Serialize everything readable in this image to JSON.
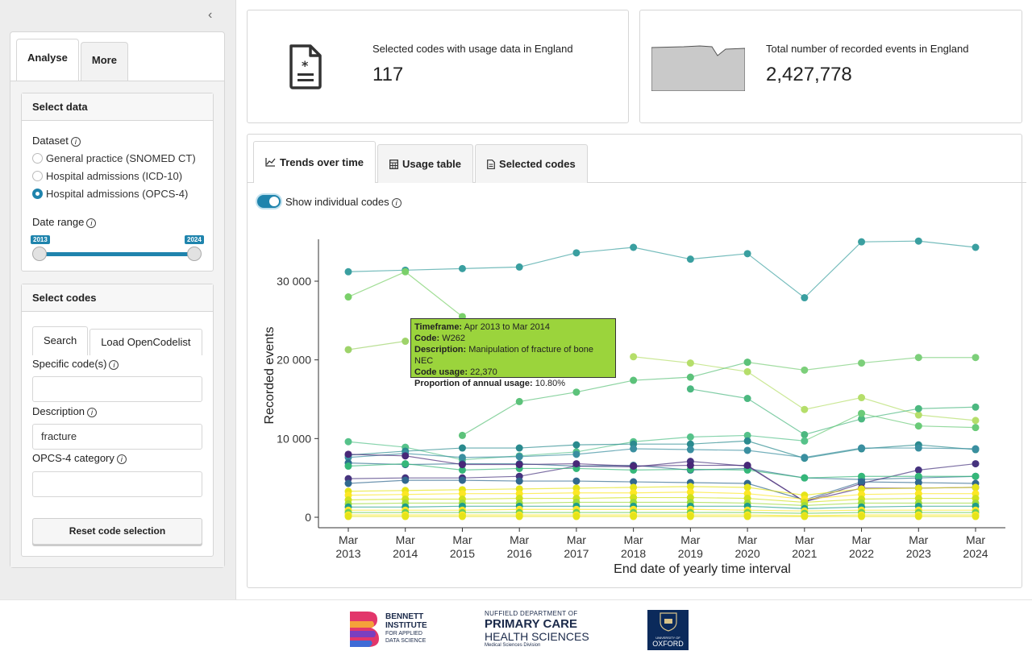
{
  "sidebar": {
    "tabs": [
      "Analyse",
      "More"
    ],
    "select_data": {
      "header": "Select data",
      "dataset_label": "Dataset",
      "datasets": [
        "General practice (SNOMED CT)",
        "Hospital admissions (ICD-10)",
        "Hospital admissions (OPCS-4)"
      ],
      "selected_dataset": 2,
      "date_range_label": "Date range",
      "date_range": [
        2013,
        2024
      ],
      "date_min_label": "2013",
      "date_max_label": "2024"
    },
    "select_codes": {
      "header": "Select codes",
      "tabs": [
        "Search",
        "Load OpenCodelist"
      ],
      "specific_codes_label": "Specific code(s)",
      "specific_codes_value": "",
      "description_label": "Description",
      "description_value": "fracture",
      "category_label": "OPCS-4 category",
      "category_value": "",
      "reset_button": "Reset code selection"
    }
  },
  "kpis": {
    "selected_codes": {
      "title": "Selected codes with usage data in England",
      "value": "117"
    },
    "total_events": {
      "title": "Total number of recorded events in England",
      "value": "2,427,778"
    }
  },
  "main_tabs": [
    "Trends over time",
    "Usage table",
    "Selected codes"
  ],
  "toggle_label": "Show individual codes",
  "tooltip": {
    "timeframe_label": "Timeframe:",
    "timeframe": "Apr 2013 to Mar 2014",
    "code_label": "Code:",
    "code": "W262",
    "description_label": "Description:",
    "description": "Manipulation of fracture of bone NEC",
    "usage_label": "Code usage:",
    "usage": "22,370",
    "proportion_label": "Proportion of annual usage:",
    "proportion": "10.80%"
  },
  "chart_data": {
    "type": "line",
    "xlabel": "End date of yearly time interval",
    "ylabel": "Recorded events",
    "x": [
      "Mar\n2013",
      "Mar\n2014",
      "Mar\n2015",
      "Mar\n2016",
      "Mar\n2017",
      "Mar\n2018",
      "Mar\n2019",
      "Mar\n2020",
      "Mar\n2021",
      "Mar\n2022",
      "Mar\n2023",
      "Mar\n2024"
    ],
    "y_ticks": [
      "0",
      "10 000",
      "20 000",
      "30 000"
    ],
    "ylim": [
      0,
      37000
    ],
    "series": [
      {
        "color": "#3a9fa0",
        "values": [
          31200,
          31400,
          31600,
          31800,
          33600,
          34300,
          32800,
          33500,
          27900,
          35000,
          35100,
          34300
        ]
      },
      {
        "color": "#7ad06a",
        "values": [
          28000,
          31200,
          25500,
          null,
          null,
          null,
          null,
          null,
          null,
          null,
          null,
          null
        ]
      },
      {
        "color": "#9ed36a",
        "values": [
          21300,
          22370,
          null,
          null,
          null,
          null,
          null,
          null,
          null,
          null,
          null,
          null
        ]
      },
      {
        "color": "#b5de6a",
        "values": [
          null,
          null,
          null,
          null,
          null,
          20400,
          19600,
          18500,
          13700,
          15200,
          13000,
          12300
        ]
      },
      {
        "color": "#7ccf7a",
        "values": [
          null,
          null,
          null,
          null,
          null,
          null,
          null,
          19700,
          18700,
          19600,
          20300,
          20300
        ]
      },
      {
        "color": "#5cc27a",
        "values": [
          null,
          null,
          10400,
          14700,
          15900,
          17400,
          17800,
          19700,
          null,
          null,
          null,
          null
        ]
      },
      {
        "color": "#4cb880",
        "values": [
          null,
          null,
          null,
          null,
          null,
          null,
          16300,
          15100,
          10500,
          12500,
          13800,
          14000
        ]
      },
      {
        "color": "#6acb78",
        "values": [
          null,
          null,
          null,
          null,
          null,
          null,
          null,
          null,
          9700,
          13200,
          11600,
          11400
        ]
      },
      {
        "color": "#56c28a",
        "values": [
          9600,
          8900,
          7300,
          7800,
          8300,
          9600,
          10200,
          10400,
          9700,
          null,
          null,
          null
        ]
      },
      {
        "color": "#2a8a8e",
        "values": [
          7900,
          8400,
          8800,
          8800,
          9200,
          9300,
          9300,
          9700,
          7500,
          8700,
          9200,
          8600
        ]
      },
      {
        "color": "#3a8fa0",
        "values": [
          7600,
          8100,
          7600,
          7700,
          8000,
          8700,
          8600,
          8500,
          7600,
          8800,
          8800,
          8700
        ]
      },
      {
        "color": "#2d6f8e",
        "values": [
          6900,
          6700,
          6800,
          6800,
          6500,
          6600,
          6000,
          6200,
          5000,
          4800,
          5000,
          5200
        ]
      },
      {
        "color": "#46337e",
        "values": [
          4900,
          5000,
          5000,
          5200,
          6500,
          6400,
          7100,
          6500,
          2000,
          4300,
          6000,
          6800
        ]
      },
      {
        "color": "#35b779",
        "values": [
          6500,
          6800,
          6000,
          6200,
          6200,
          6000,
          6100,
          6000,
          5000,
          5200,
          5200,
          5200
        ]
      },
      {
        "color": "#31688e",
        "values": [
          4300,
          4700,
          4700,
          4600,
          4600,
          4500,
          4400,
          4300,
          2200,
          4500,
          4400,
          4300
        ]
      },
      {
        "color": "#482878",
        "values": [
          8000,
          7800,
          6700,
          6700,
          6800,
          6500,
          6600,
          6600,
          2000,
          3700,
          3700,
          3800
        ]
      },
      {
        "color": "#e5e419",
        "values": [
          3300,
          3400,
          3500,
          3600,
          3700,
          3800,
          3900,
          3800,
          2800,
          3600,
          3700,
          3800
        ]
      },
      {
        "color": "#fde725",
        "values": [
          2800,
          2900,
          3000,
          3000,
          3100,
          3100,
          3200,
          3000,
          2300,
          2900,
          3000,
          3000
        ]
      },
      {
        "color": "#d0e11c",
        "values": [
          2200,
          2300,
          2300,
          2400,
          2400,
          2500,
          2500,
          2400,
          1900,
          2300,
          2400,
          2400
        ]
      },
      {
        "color": "#a0da39",
        "values": [
          1700,
          1800,
          1800,
          1800,
          1900,
          1900,
          1900,
          1800,
          1500,
          1800,
          1800,
          1800
        ]
      },
      {
        "color": "#1f9e89",
        "values": [
          1300,
          1300,
          1400,
          1400,
          1400,
          1400,
          1400,
          1400,
          1100,
          1300,
          1400,
          1400
        ]
      },
      {
        "color": "#fde725",
        "values": [
          900,
          900,
          900,
          1000,
          1000,
          1000,
          1000,
          900,
          800,
          900,
          900,
          900
        ]
      },
      {
        "color": "#6ece58",
        "values": [
          600,
          600,
          600,
          600,
          600,
          600,
          600,
          600,
          500,
          600,
          600,
          600
        ]
      },
      {
        "color": "#fde725",
        "values": [
          300,
          300,
          300,
          300,
          300,
          300,
          300,
          300,
          200,
          300,
          300,
          300
        ]
      },
      {
        "color": "#e5e419",
        "values": [
          100,
          100,
          100,
          100,
          100,
          100,
          100,
          100,
          100,
          100,
          100,
          100
        ]
      }
    ]
  },
  "footer": {
    "bennett_line1": "BENNETT",
    "bennett_line2": "INSTITUTE",
    "bennett_line3": "FOR APPLIED",
    "bennett_line4": "DATA SCIENCE",
    "nuffield_line1": "NUFFIELD DEPARTMENT OF",
    "nuffield_line2": "PRIMARY CARE",
    "nuffield_line3": "HEALTH SCIENCES",
    "nuffield_line4": "Medical Sciences Division",
    "oxford_line1": "UNIVERSITY OF",
    "oxford_line2": "OXFORD"
  }
}
